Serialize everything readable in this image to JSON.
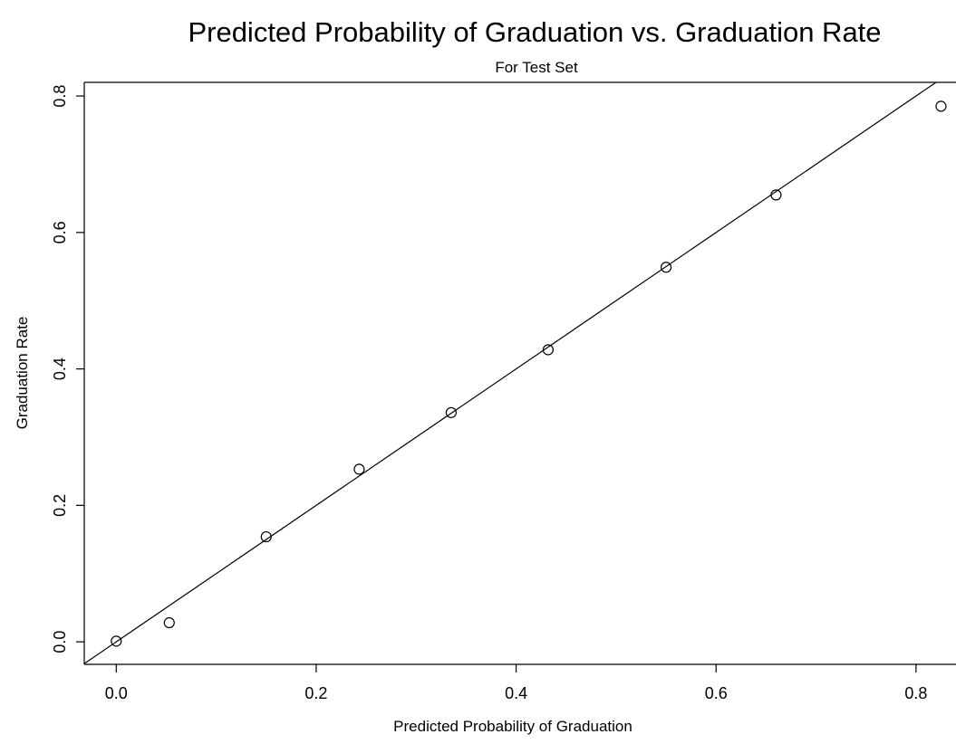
{
  "chart_data": {
    "type": "scatter",
    "title": "Predicted Probability of Graduation vs. Graduation Rate",
    "subtitle": "For Test Set",
    "xlabel": "Predicted Probability of Graduation",
    "ylabel": "Graduation Rate",
    "xlim": [
      -0.032,
      0.84
    ],
    "ylim": [
      -0.033,
      0.82
    ],
    "x_ticks": [
      0.0,
      0.2,
      0.4,
      0.6,
      0.8
    ],
    "x_tick_labels": [
      "0.0",
      "0.2",
      "0.4",
      "0.6",
      "0.8"
    ],
    "y_ticks": [
      0.0,
      0.2,
      0.4,
      0.6,
      0.8
    ],
    "y_tick_labels": [
      "0.0",
      "0.2",
      "0.4",
      "0.6",
      "0.8"
    ],
    "grid": false,
    "marker": "open-circle",
    "points": [
      {
        "x": 0.0,
        "y": 0.001
      },
      {
        "x": 0.053,
        "y": 0.028
      },
      {
        "x": 0.15,
        "y": 0.154
      },
      {
        "x": 0.243,
        "y": 0.253
      },
      {
        "x": 0.335,
        "y": 0.336
      },
      {
        "x": 0.432,
        "y": 0.428
      },
      {
        "x": 0.55,
        "y": 0.549
      },
      {
        "x": 0.66,
        "y": 0.655
      },
      {
        "x": 0.825,
        "y": 0.785
      }
    ],
    "reference_line": {
      "intercept": 0,
      "slope": 1
    }
  }
}
